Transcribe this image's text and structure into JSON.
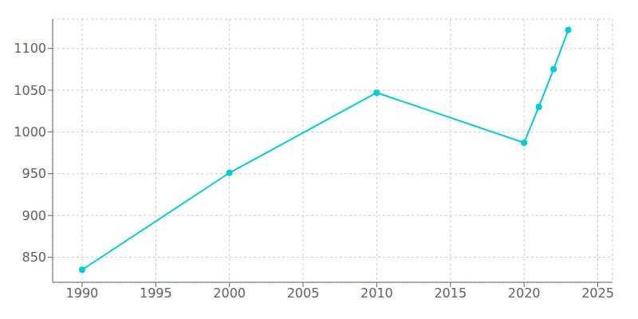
{
  "chart_data": {
    "type": "line",
    "x": [
      1990,
      2000,
      2010,
      2020,
      2021,
      2022,
      2023
    ],
    "values": [
      835,
      951,
      1047,
      987,
      1030,
      1075,
      1122
    ],
    "color": "#00CED1",
    "marker": "circle",
    "xlim": [
      1988,
      2026
    ],
    "ylim": [
      820,
      1135
    ],
    "xticks": [
      1990,
      1995,
      2000,
      2005,
      2010,
      2015,
      2020,
      2025
    ],
    "yticks": [
      850,
      900,
      950,
      1000,
      1050,
      1100
    ],
    "grid": true
  }
}
